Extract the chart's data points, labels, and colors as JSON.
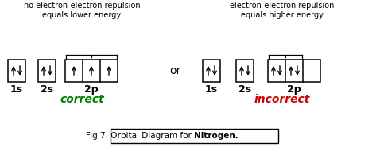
{
  "bg_color": "#ffffff",
  "text_color": "#000000",
  "correct_color": "#008000",
  "incorrect_color": "#cc0000",
  "title_text_pre": "Fig 7. Orbital Diagram for ",
  "title_text_bold": "Nitrogen.",
  "header_left": "no electron-electron repulsion\nequals lower energy",
  "header_right": "electron-electron repulsion\nequals higher energy",
  "or_text": "or",
  "correct_text": "correct",
  "incorrect_text": "incorrect",
  "label_1s": "1s",
  "label_2s": "2s",
  "label_2p": "2p",
  "figw": 4.89,
  "figh": 1.85,
  "dpi": 100
}
